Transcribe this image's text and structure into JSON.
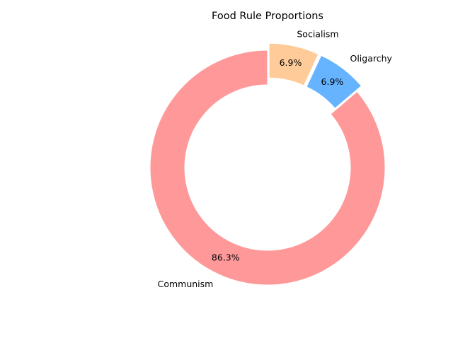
{
  "chart_data": {
    "type": "pie",
    "donut": true,
    "title": "Food Rule Proportions",
    "start_angle_deg": 90,
    "direction": "counterclockwise",
    "legend": "none",
    "grid": false,
    "slices": [
      {
        "label": "Communism",
        "value": 86.3,
        "pct_text": "86.3%",
        "color": "#ff9999",
        "exploded": false
      },
      {
        "label": "Oligarchy",
        "value": 6.9,
        "pct_text": "6.9%",
        "color": "#66b3ff",
        "exploded": true
      },
      {
        "label": "Socialism",
        "value": 6.9,
        "pct_text": "6.9%",
        "color": "#ffcc99",
        "exploded": true
      }
    ]
  }
}
